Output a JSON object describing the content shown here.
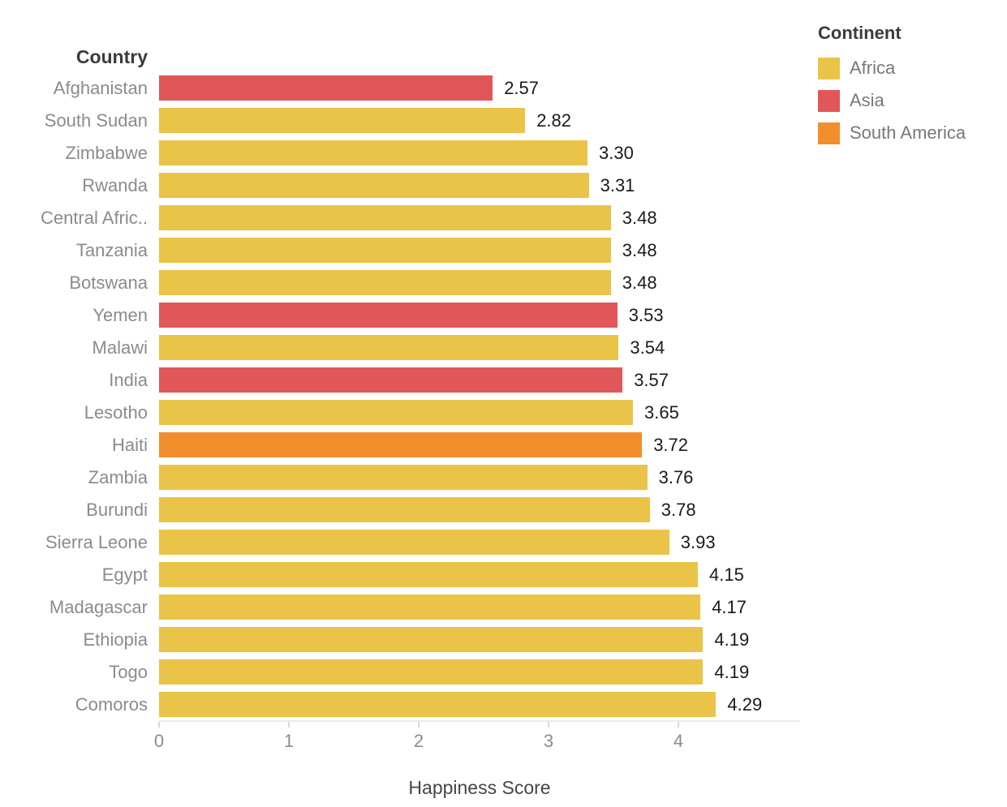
{
  "column_header": "Country",
  "axis": {
    "title": "Happiness Score",
    "tick_labels": [
      "0",
      "1",
      "2",
      "3",
      "4"
    ]
  },
  "legend": {
    "title": "Continent",
    "items": [
      {
        "label": "Africa",
        "color": "#E9C449"
      },
      {
        "label": "Asia",
        "color": "#E15759"
      },
      {
        "label": "South America",
        "color": "#F28E2B"
      }
    ]
  },
  "chart_data": {
    "type": "bar",
    "orientation": "horizontal",
    "title": "",
    "xlabel": "Happiness Score",
    "ylabel": "Country",
    "xlim": [
      0,
      4.94
    ],
    "x_ticks": [
      0,
      1,
      2,
      3,
      4
    ],
    "grid": false,
    "legend_position": "top-right",
    "categories": [
      "Afghanistan",
      "South Sudan",
      "Zimbabwe",
      "Rwanda",
      "Central Afric..",
      "Tanzania",
      "Botswana",
      "Yemen",
      "Malawi",
      "India",
      "Lesotho",
      "Haiti",
      "Zambia",
      "Burundi",
      "Sierra Leone",
      "Egypt",
      "Madagascar",
      "Ethiopia",
      "Togo",
      "Comoros"
    ],
    "values": [
      2.57,
      2.82,
      3.3,
      3.31,
      3.48,
      3.48,
      3.48,
      3.53,
      3.54,
      3.57,
      3.65,
      3.72,
      3.76,
      3.78,
      3.93,
      4.15,
      4.17,
      4.19,
      4.19,
      4.29
    ],
    "value_labels": [
      "2.57",
      "2.82",
      "3.30",
      "3.31",
      "3.48",
      "3.48",
      "3.48",
      "3.53",
      "3.54",
      "3.57",
      "3.65",
      "3.72",
      "3.76",
      "3.78",
      "3.93",
      "4.15",
      "4.17",
      "4.19",
      "4.19",
      "4.29"
    ],
    "series_field": "Continent",
    "continents": [
      "Asia",
      "Africa",
      "Africa",
      "Africa",
      "Africa",
      "Africa",
      "Africa",
      "Asia",
      "Africa",
      "Asia",
      "Africa",
      "South America",
      "Africa",
      "Africa",
      "Africa",
      "Africa",
      "Africa",
      "Africa",
      "Africa",
      "Africa"
    ],
    "colors": {
      "Africa": "#E9C449",
      "Asia": "#E15759",
      "South America": "#F28E2B"
    }
  }
}
